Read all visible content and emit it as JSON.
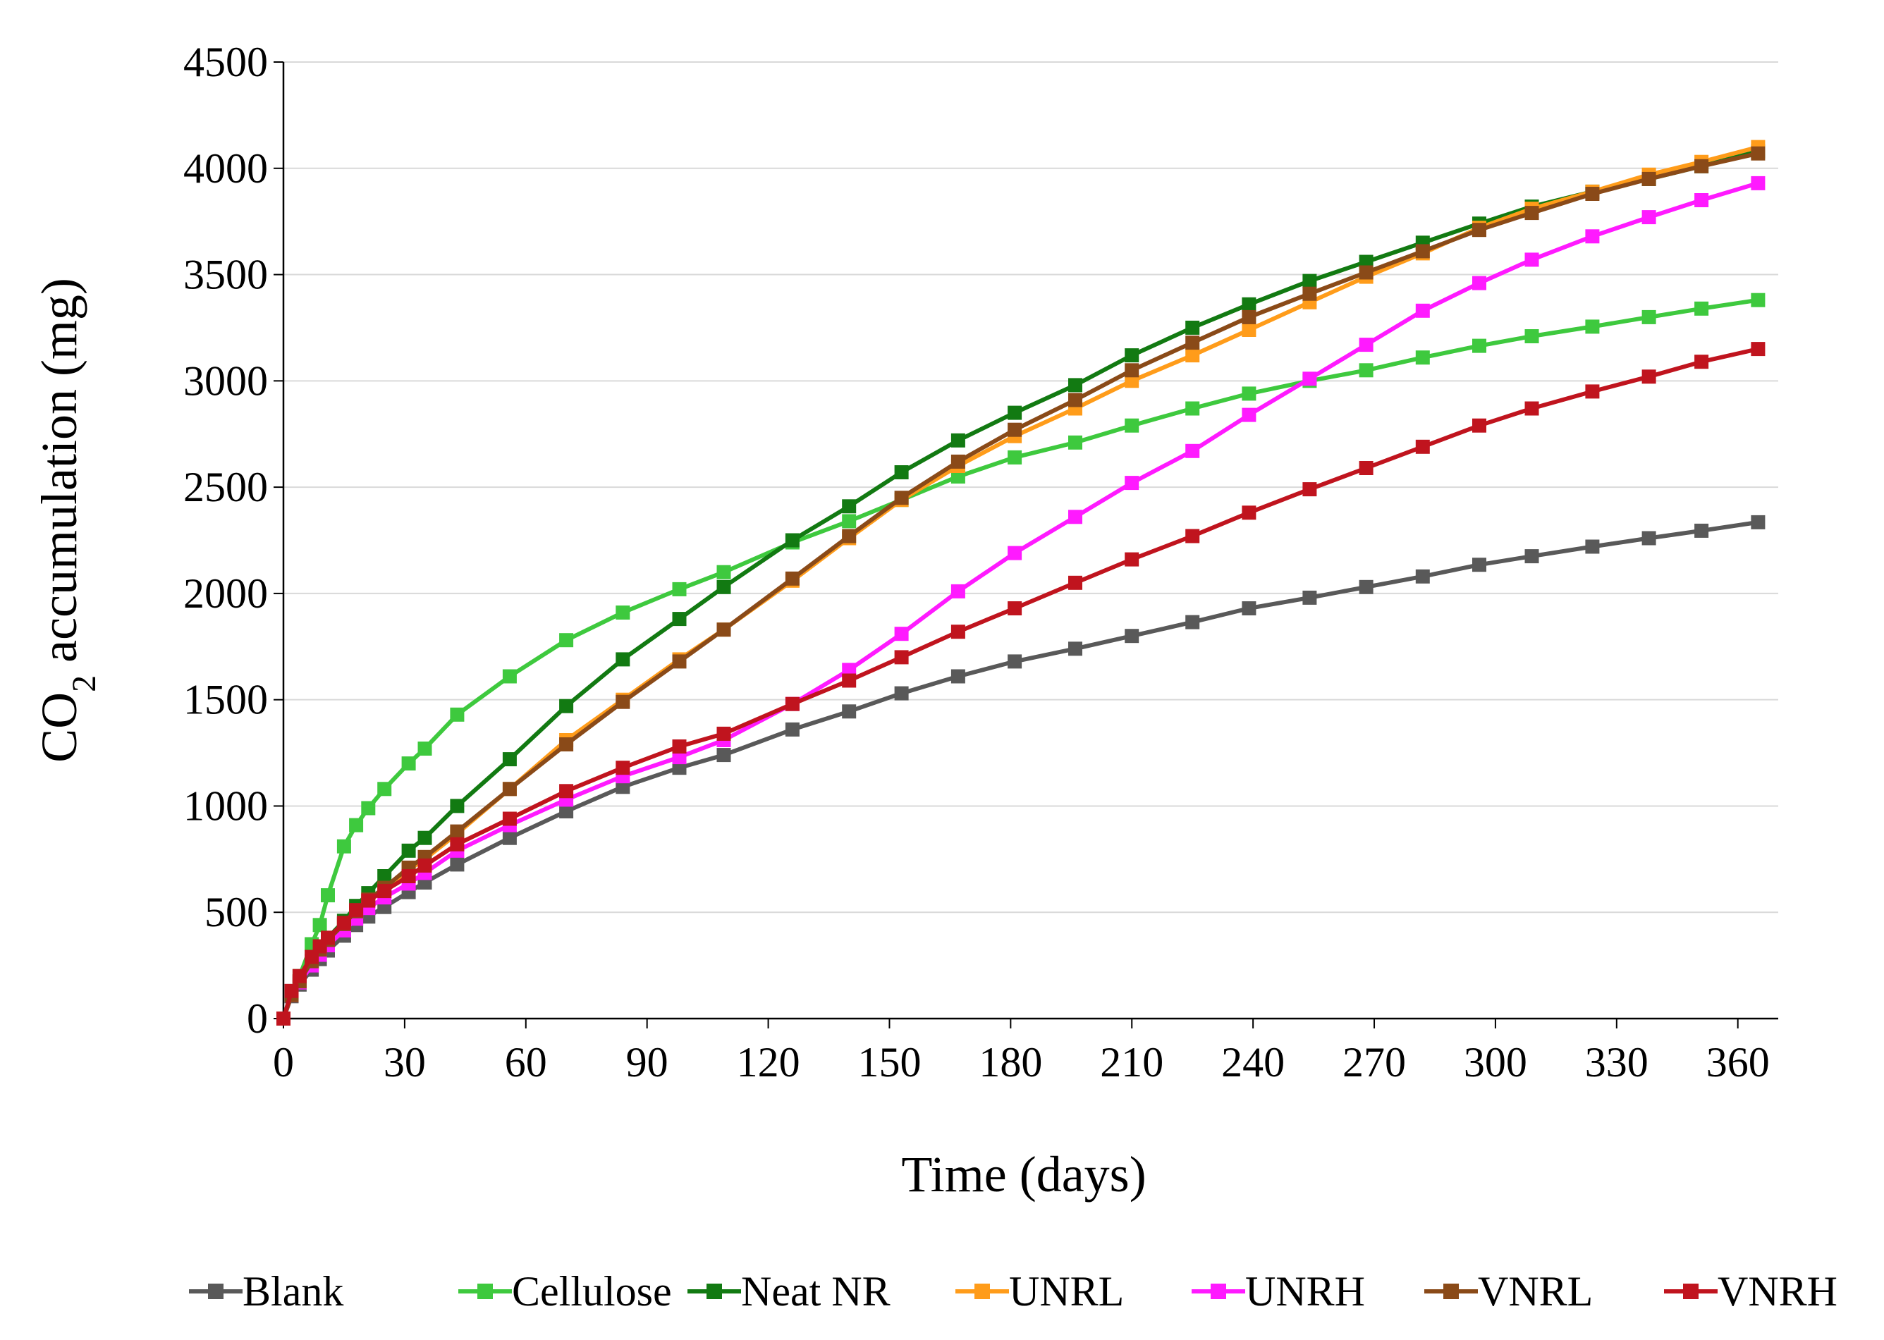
{
  "chart_data": {
    "type": "line",
    "xlabel": "Time (days)",
    "ylabel": {
      "prefix": "CO",
      "sub": "2",
      "suffix": " accumulation (mg)"
    },
    "xlim": [
      0,
      370
    ],
    "ylim": [
      0,
      4500
    ],
    "xticks": [
      0,
      30,
      60,
      90,
      120,
      150,
      180,
      210,
      240,
      270,
      300,
      330,
      360
    ],
    "yticks": [
      0,
      500,
      1000,
      1500,
      2000,
      2500,
      3000,
      3500,
      4000,
      4500
    ],
    "grid": "horizontal",
    "legend_position": "bottom",
    "marker": "square",
    "x": [
      0,
      2,
      4,
      7,
      9,
      11,
      15,
      18,
      21,
      25,
      31,
      35,
      43,
      56,
      70,
      84,
      98,
      109,
      126,
      140,
      153,
      167,
      181,
      196,
      210,
      225,
      239,
      254,
      268,
      282,
      296,
      309,
      324,
      338,
      351,
      365
    ],
    "series": [
      {
        "name": "Blank",
        "color": "#595959",
        "values": [
          0,
          105,
          160,
          230,
          280,
          320,
          390,
          440,
          480,
          525,
          595,
          640,
          725,
          850,
          975,
          1090,
          1180,
          1240,
          1360,
          1445,
          1530,
          1610,
          1680,
          1740,
          1800,
          1865,
          1930,
          1980,
          2030,
          2080,
          2135,
          2175,
          2220,
          2260,
          2295,
          2335
        ]
      },
      {
        "name": "Cellulose",
        "color": "#3ec93e",
        "values": [
          0,
          120,
          200,
          350,
          440,
          580,
          810,
          910,
          990,
          1080,
          1200,
          1270,
          1430,
          1610,
          1780,
          1910,
          2020,
          2100,
          2240,
          2340,
          2440,
          2550,
          2640,
          2710,
          2790,
          2870,
          2940,
          3000,
          3050,
          3110,
          3165,
          3210,
          3255,
          3300,
          3340,
          3380
        ]
      },
      {
        "name": "Neat NR",
        "color": "#127a12",
        "values": [
          0,
          110,
          175,
          270,
          330,
          380,
          460,
          530,
          590,
          670,
          790,
          850,
          1000,
          1220,
          1470,
          1690,
          1880,
          2030,
          2250,
          2410,
          2570,
          2720,
          2850,
          2980,
          3120,
          3250,
          3360,
          3470,
          3560,
          3650,
          3740,
          3820,
          3890,
          3950,
          4010,
          4080
        ]
      },
      {
        "name": "UNRL",
        "color": "#ff9c1a",
        "values": [
          0,
          110,
          175,
          265,
          320,
          365,
          440,
          500,
          555,
          610,
          700,
          750,
          870,
          1080,
          1310,
          1500,
          1690,
          1830,
          2060,
          2260,
          2440,
          2600,
          2740,
          2870,
          3000,
          3120,
          3240,
          3370,
          3490,
          3600,
          3720,
          3810,
          3890,
          3970,
          4030,
          4100
        ]
      },
      {
        "name": "UNRH",
        "color": "#ff1aff",
        "values": [
          0,
          110,
          170,
          250,
          300,
          345,
          415,
          470,
          520,
          570,
          635,
          685,
          790,
          910,
          1030,
          1140,
          1230,
          1310,
          1480,
          1640,
          1810,
          2010,
          2190,
          2360,
          2520,
          2670,
          2840,
          3010,
          3170,
          3330,
          3460,
          3570,
          3680,
          3770,
          3850,
          3930
        ]
      },
      {
        "name": "VNRL",
        "color": "#8a4a18",
        "values": [
          0,
          110,
          175,
          270,
          325,
          370,
          445,
          505,
          560,
          615,
          710,
          760,
          880,
          1080,
          1290,
          1490,
          1680,
          1830,
          2070,
          2270,
          2450,
          2620,
          2770,
          2910,
          3050,
          3180,
          3300,
          3410,
          3510,
          3610,
          3710,
          3790,
          3880,
          3950,
          4010,
          4070
        ]
      },
      {
        "name": "VNRH",
        "color": "#c0141e",
        "values": [
          0,
          130,
          200,
          290,
          340,
          380,
          450,
          510,
          555,
          600,
          670,
          720,
          820,
          940,
          1070,
          1180,
          1280,
          1340,
          1480,
          1590,
          1700,
          1820,
          1930,
          2050,
          2160,
          2270,
          2380,
          2490,
          2590,
          2690,
          2790,
          2870,
          2950,
          3020,
          3090,
          3150
        ]
      }
    ]
  }
}
